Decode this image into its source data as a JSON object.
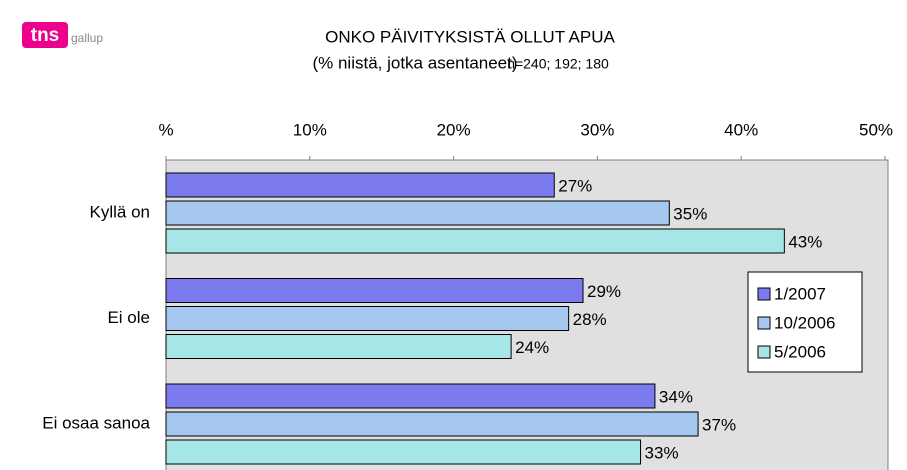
{
  "logo": {
    "brand": "tns",
    "name": "gallup"
  },
  "chart_data": {
    "type": "hbar",
    "title": "ONKO PÄIVITYKSISTÄ OLLUT APUA",
    "subtitle": "(% niistä, jotka asentaneet)",
    "note": "n=240; 192; 180",
    "categories": [
      "Kyllä on",
      "Ei ole",
      "Ei osaa sanoa"
    ],
    "series": [
      {
        "name": "1/2007",
        "color": "#7b7bef",
        "values": [
          27,
          29,
          34
        ],
        "value_labels": [
          "27%",
          "29%",
          "34%"
        ]
      },
      {
        "name": "10/2006",
        "color": "#a6c8ef",
        "values": [
          35,
          28,
          37
        ],
        "value_labels": [
          "35%",
          "28%",
          "37%"
        ]
      },
      {
        "name": "5/2006",
        "color": "#a6e6e6",
        "values": [
          43,
          24,
          33
        ],
        "value_labels": [
          "43%",
          "24%",
          "33%"
        ]
      }
    ],
    "xlim": [
      0,
      50
    ],
    "xticks": [
      {
        "value": 0,
        "label": "%"
      },
      {
        "value": 10,
        "label": "10%"
      },
      {
        "value": 20,
        "label": "20%"
      },
      {
        "value": 30,
        "label": "30%"
      },
      {
        "value": 40,
        "label": "40%"
      },
      {
        "value": 50,
        "label": "50%"
      }
    ],
    "legend": "right"
  }
}
